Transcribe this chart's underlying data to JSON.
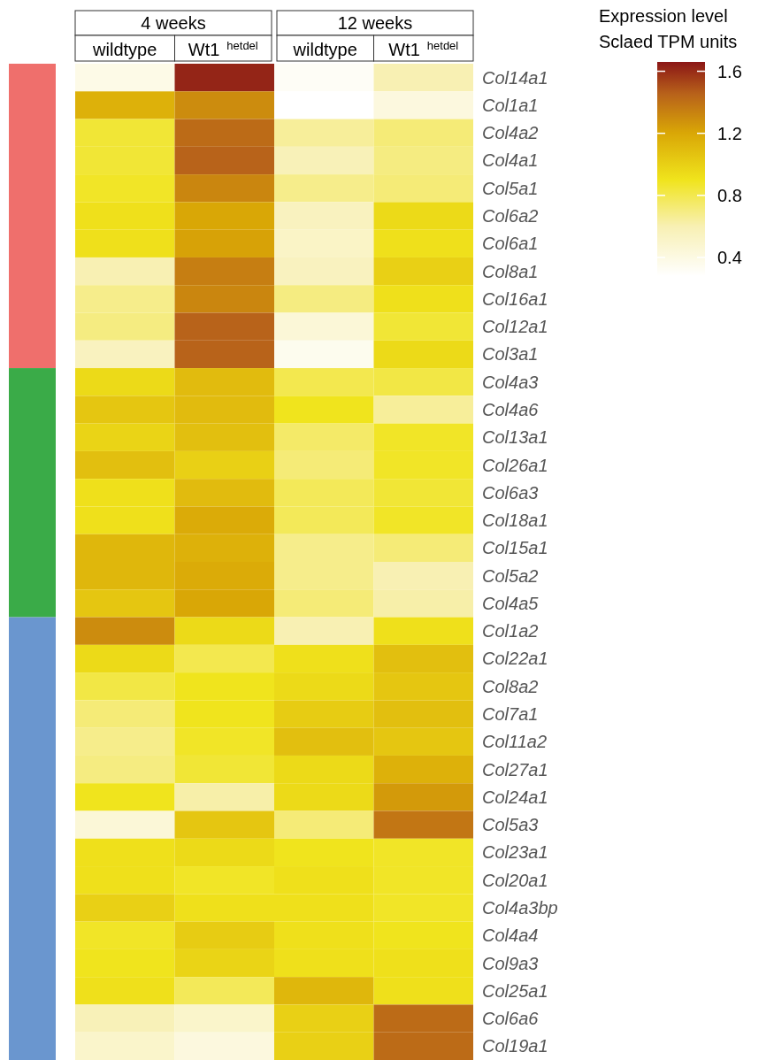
{
  "chart_data": {
    "type": "heatmap",
    "clabel": "Expression level\nSclaed TPM units",
    "annotations": [
      "4 weeks",
      "12 weeks"
    ],
    "categories": [
      "wildtype",
      "Wt1$^{hetdel}$",
      "wildtype",
      "Wt1$^{hetdel}$"
    ],
    "y_categories": [
      "Col14a1",
      "Col1a1",
      "Col4a2",
      "Col4a1",
      "Col5a1",
      "Col6a2",
      "Col6a1",
      "Col8a1",
      "Col16a1",
      "Col12a1",
      "Col3a1",
      "Col4a3",
      "Col4a6",
      "Col13a1",
      "Col26a1",
      "Col6a3",
      "Col18a1",
      "Col15a1",
      "Col5a2",
      "Col4a5",
      "Col1a2",
      "Col22a1",
      "Col8a2",
      "Col7a1",
      "Col11a2",
      "Col27a1",
      "Col24a1",
      "Col5a3",
      "Col23a1",
      "Col20a1",
      "Col4a3bp",
      "Col4a4",
      "Col9a3",
      "Col25a1",
      "Col6a6",
      "Col19a1"
    ],
    "cells": [
      [
        0.38,
        1.62,
        0.32,
        0.6
      ],
      [
        1.15,
        1.3,
        0.28,
        0.42
      ],
      [
        0.85,
        1.42,
        0.65,
        0.72
      ],
      [
        0.85,
        1.45,
        0.58,
        0.7
      ],
      [
        0.88,
        1.32,
        0.68,
        0.72
      ],
      [
        0.92,
        1.2,
        0.55,
        0.95
      ],
      [
        0.92,
        1.22,
        0.52,
        0.92
      ],
      [
        0.6,
        1.35,
        0.55,
        1.0
      ],
      [
        0.68,
        1.32,
        0.7,
        0.92
      ],
      [
        0.7,
        1.45,
        0.45,
        0.85
      ],
      [
        0.55,
        1.45,
        0.35,
        0.95
      ],
      [
        0.95,
        1.1,
        0.8,
        0.82
      ],
      [
        1.05,
        1.1,
        0.9,
        0.65
      ],
      [
        0.98,
        1.08,
        0.75,
        0.88
      ],
      [
        1.08,
        1.0,
        0.72,
        0.88
      ],
      [
        0.92,
        1.1,
        0.78,
        0.85
      ],
      [
        0.92,
        1.18,
        0.78,
        0.88
      ],
      [
        1.12,
        1.15,
        0.68,
        0.72
      ],
      [
        1.12,
        1.18,
        0.68,
        0.6
      ],
      [
        1.05,
        1.2,
        0.72,
        0.62
      ],
      [
        1.3,
        0.95,
        0.6,
        0.92
      ],
      [
        0.95,
        0.8,
        0.92,
        1.08
      ],
      [
        0.82,
        0.9,
        0.95,
        1.05
      ],
      [
        0.72,
        0.9,
        1.02,
        1.08
      ],
      [
        0.68,
        0.88,
        1.08,
        1.05
      ],
      [
        0.7,
        0.85,
        0.95,
        1.15
      ],
      [
        0.9,
        0.62,
        0.95,
        1.25
      ],
      [
        0.45,
        1.05,
        0.72,
        1.38
      ],
      [
        0.92,
        0.95,
        0.9,
        0.88
      ],
      [
        0.92,
        0.88,
        0.92,
        0.88
      ],
      [
        1.0,
        0.92,
        0.92,
        0.88
      ],
      [
        0.88,
        1.02,
        0.92,
        0.9
      ],
      [
        0.9,
        0.98,
        0.92,
        0.92
      ],
      [
        0.92,
        0.78,
        1.12,
        0.92
      ],
      [
        0.58,
        0.5,
        1.0,
        1.42
      ],
      [
        0.5,
        0.42,
        1.0,
        1.42
      ]
    ],
    "clim": [
      0.28,
      1.66
    ],
    "cticks": [
      0.4,
      0.8,
      1.2,
      1.6
    ]
  }
}
